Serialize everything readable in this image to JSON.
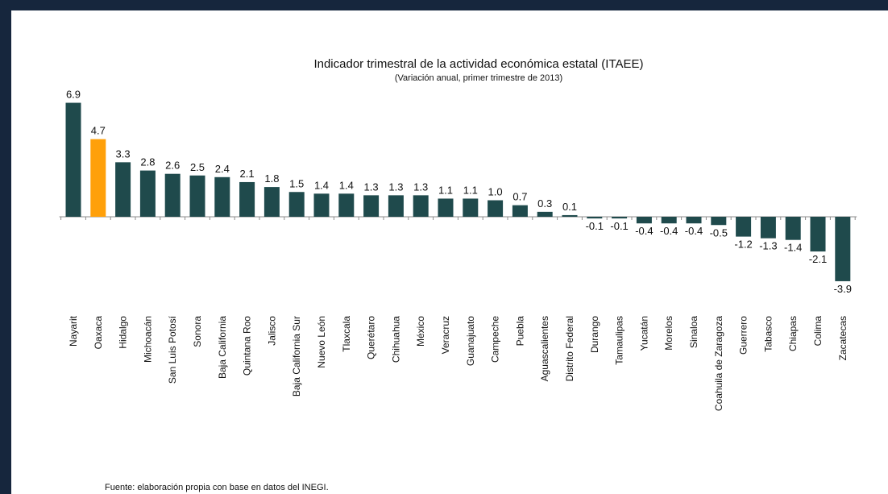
{
  "chart_data": {
    "type": "bar",
    "title": "Indicador trimestral de la actividad económica estatal (ITAEE)",
    "subtitle": "(Variación anual,  primer trimestre de 2013)",
    "categories": [
      "Nayarit",
      "Oaxaca",
      "Hidalgo",
      "Michoacán",
      "San Luis Potosí",
      "Sonora",
      "Baja California",
      "Quintana Roo",
      "Jalisco",
      "Baja California Sur",
      "Nuevo León",
      "Tlaxcala",
      "Querétaro",
      "Chihuahua",
      "México",
      "Veracruz",
      "Guanajuato",
      "Campeche",
      "Puebla",
      "Aguascalientes",
      "Distrito Federal",
      "Durango",
      "Tamaulipas",
      "Yucatán",
      "Morelos",
      "Sinaloa",
      "Coahuila de Zaragoza",
      "Guerrero",
      "Tabasco",
      "Chiapas",
      "Colima",
      "Zacatecas"
    ],
    "values": [
      6.9,
      4.7,
      3.3,
      2.8,
      2.6,
      2.5,
      2.4,
      2.1,
      1.8,
      1.5,
      1.4,
      1.4,
      1.3,
      1.3,
      1.3,
      1.1,
      1.1,
      1.0,
      0.7,
      0.3,
      0.1,
      -0.1,
      -0.1,
      -0.4,
      -0.4,
      -0.4,
      -0.5,
      -1.2,
      -1.3,
      -1.4,
      -2.1,
      -3.9
    ],
    "value_labels": [
      "6.9",
      "4.7",
      "3.3",
      "2.8",
      "2.6",
      "2.5",
      "2.4",
      "2.1",
      "1.8",
      "1.5",
      "1.4",
      "1.4",
      "1.3",
      "1.3",
      "1.3",
      "1.1",
      "1.1",
      "1.0",
      "0.7",
      "0.3",
      "0.1",
      "-0.1",
      "-0.1",
      "-0.4",
      "-0.4",
      "-0.4",
      "-0.5",
      "-1.2",
      "-1.3",
      "-1.4",
      "-2.1",
      "-3.9"
    ],
    "highlight_category": "Oaxaca",
    "colors": {
      "bar": "#1f4a4c",
      "highlight": "#ffa00a",
      "axis": "#8c8c8c"
    },
    "xlabel": "",
    "ylabel": "",
    "ylim": [
      -3.9,
      6.9
    ],
    "grid": false,
    "legend": "none"
  },
  "source": "Fuente: elaboración propia con base en datos del INEGI."
}
